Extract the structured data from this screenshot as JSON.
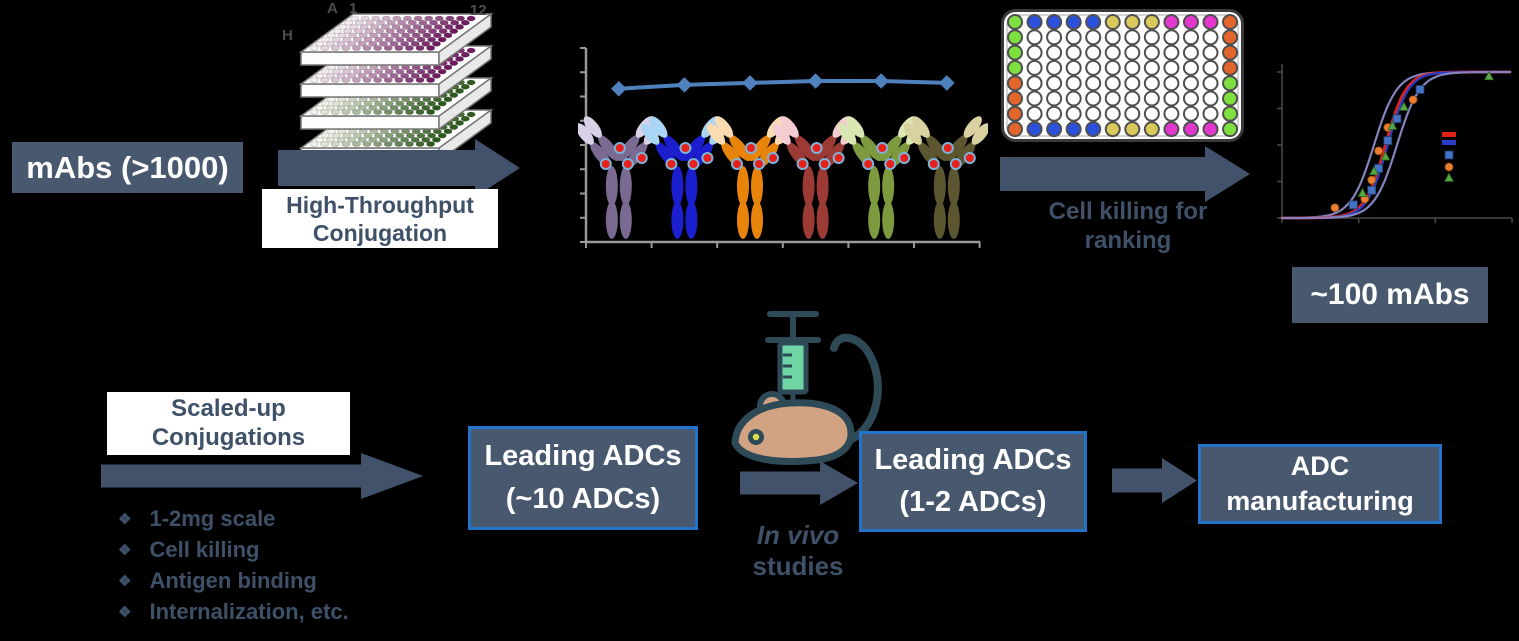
{
  "colors": {
    "bg": "#000000",
    "slate_fill": "#48586e",
    "arrow": "#42526b",
    "slate_text": "#3e5168",
    "box_border": "#2273cc",
    "box_text": "#ffffff",
    "axis_gray": "#9a9a9a",
    "axis_dark": "#4a4a4a",
    "line_blue": "#4f81bd",
    "payload_red": "#e8201a",
    "payload_ring": "#7fb2d9",
    "mouse_body": "#d2a383",
    "mouse_outline": "#2e4a57",
    "syringe_fluid": "#6fd5a4",
    "mouse_eye": "#dde04a",
    "plate_label": "#4d4d4d"
  },
  "stage_mabs": {
    "label": "mAbs (>1000)"
  },
  "ht_conjugation": {
    "line1": "High-Throughput",
    "line2": "Conjugation"
  },
  "plate_stack": {
    "corner_labels": {
      "row_first": "A",
      "col_first": "1",
      "col_last": "12",
      "row_last": "H"
    },
    "plates": [
      {
        "well_light": "#f3e9ef",
        "well_dark": "#701a60"
      },
      {
        "well_light": "#f3e9ef",
        "well_dark": "#701a60"
      },
      {
        "well_light": "#eff2e6",
        "well_dark": "#2f5a1e"
      },
      {
        "well_light": "#eff2e6",
        "well_dark": "#2f5a1e"
      }
    ]
  },
  "antibodies": [
    {
      "body": "#7a6a92",
      "tip": "#d9d2e6"
    },
    {
      "body": "#1b1fd0",
      "tip": "#a9d6f5"
    },
    {
      "body": "#e8840c",
      "tip": "#fadcb0"
    },
    {
      "body": "#9c3a36",
      "tip": "#f3cdd1"
    },
    {
      "body": "#7d9a3e",
      "tip": "#dbe7b2"
    },
    {
      "body": "#5c5730",
      "tip": "#d9d2a0"
    }
  ],
  "assay_plate": {
    "rows": 8,
    "cols": 12,
    "palette": {
      "G": "#7de03f",
      "B": "#2b50dc",
      "Y": "#d9c95b",
      "M": "#e437ce",
      "O": "#e4652c",
      "W": "#ffffff"
    },
    "layout": [
      "GBBBBYYYMMMO",
      "GWWWWWWWWWWO",
      "GWWWWWWWWWWO",
      "GWWWWWWWWWWO",
      "OWWWWWWWWWWG",
      "OWWWWWWWWWWG",
      "OWWWWWWWWWWG",
      "OBBBBYYYMMMG"
    ]
  },
  "cell_killing": {
    "line1": "Cell killing for",
    "line2": "ranking"
  },
  "stage_100": {
    "label": "~100 mAbs"
  },
  "scaled_up": {
    "line1": "Scaled-up",
    "line2": "Conjugations"
  },
  "criteria": {
    "bullet": "❖",
    "items": [
      "1-2mg scale",
      "Cell killing",
      "Antigen binding",
      "Internalization, etc."
    ]
  },
  "box_leading_10": {
    "line1": "Leading ADCs",
    "line2": "(~10 ADCs)"
  },
  "in_vivo": {
    "line1": "In vivo",
    "line2": "studies"
  },
  "box_leading_2": {
    "line1": "Leading ADCs",
    "line2": "(1-2 ADCs)"
  },
  "box_manufacturing": {
    "line1": "ADC",
    "line2": "manufacturing"
  },
  "chart_data": [
    {
      "type": "line",
      "title": "",
      "xlabel": "",
      "ylabel": "",
      "axis_labels_visible": false,
      "grid": false,
      "x": [
        1,
        2,
        3,
        4,
        5,
        6
      ],
      "ylim": [
        0,
        1
      ],
      "series": [
        {
          "name": "series-1",
          "color": "#4f81bd",
          "marker": "diamond",
          "values": [
            0.79,
            0.81,
            0.82,
            0.83,
            0.83,
            0.82
          ]
        }
      ]
    },
    {
      "type": "line",
      "title": "",
      "xlabel": "",
      "ylabel": "",
      "axis_labels_visible": false,
      "x_scale": "log",
      "ylim": [
        0,
        1
      ],
      "curves": [
        {
          "name": "fit-outer-left",
          "color": "#8583bd",
          "ec50_frac": 0.4,
          "width_frac": 0.05,
          "stroke": 2.2
        },
        {
          "name": "fit-red",
          "color": "#e02318",
          "ec50_frac": 0.45,
          "width_frac": 0.045,
          "stroke": 3.0
        },
        {
          "name": "fit-blue",
          "color": "#2a3cc8",
          "ec50_frac": 0.46,
          "width_frac": 0.045,
          "stroke": 2.2
        },
        {
          "name": "fit-outer-right",
          "color": "#8583bd",
          "ec50_frac": 0.5,
          "width_frac": 0.05,
          "stroke": 2.2
        }
      ],
      "scatter": [
        {
          "name": "blue-squares",
          "color": "#4472c4",
          "marker": "square",
          "points": [
            [
              0.31,
              0.09
            ],
            [
              0.39,
              0.19
            ],
            [
              0.42,
              0.34
            ],
            [
              0.46,
              0.53
            ],
            [
              0.5,
              0.68
            ],
            [
              0.6,
              0.88
            ]
          ]
        },
        {
          "name": "orange-circles",
          "color": "#ed7d31",
          "marker": "circle",
          "points": [
            [
              0.23,
              0.07
            ],
            [
              0.36,
              0.13
            ],
            [
              0.39,
              0.26
            ],
            [
              0.42,
              0.46
            ],
            [
              0.46,
              0.62
            ],
            [
              0.57,
              0.81
            ]
          ]
        },
        {
          "name": "green-triangles",
          "color": "#55a842",
          "marker": "triangle",
          "points": [
            [
              0.35,
              0.17
            ],
            [
              0.4,
              0.32
            ],
            [
              0.45,
              0.42
            ],
            [
              0.48,
              0.63
            ],
            [
              0.53,
              0.76
            ],
            [
              0.9,
              0.97
            ]
          ]
        }
      ],
      "legend_position": "right-middle"
    }
  ]
}
